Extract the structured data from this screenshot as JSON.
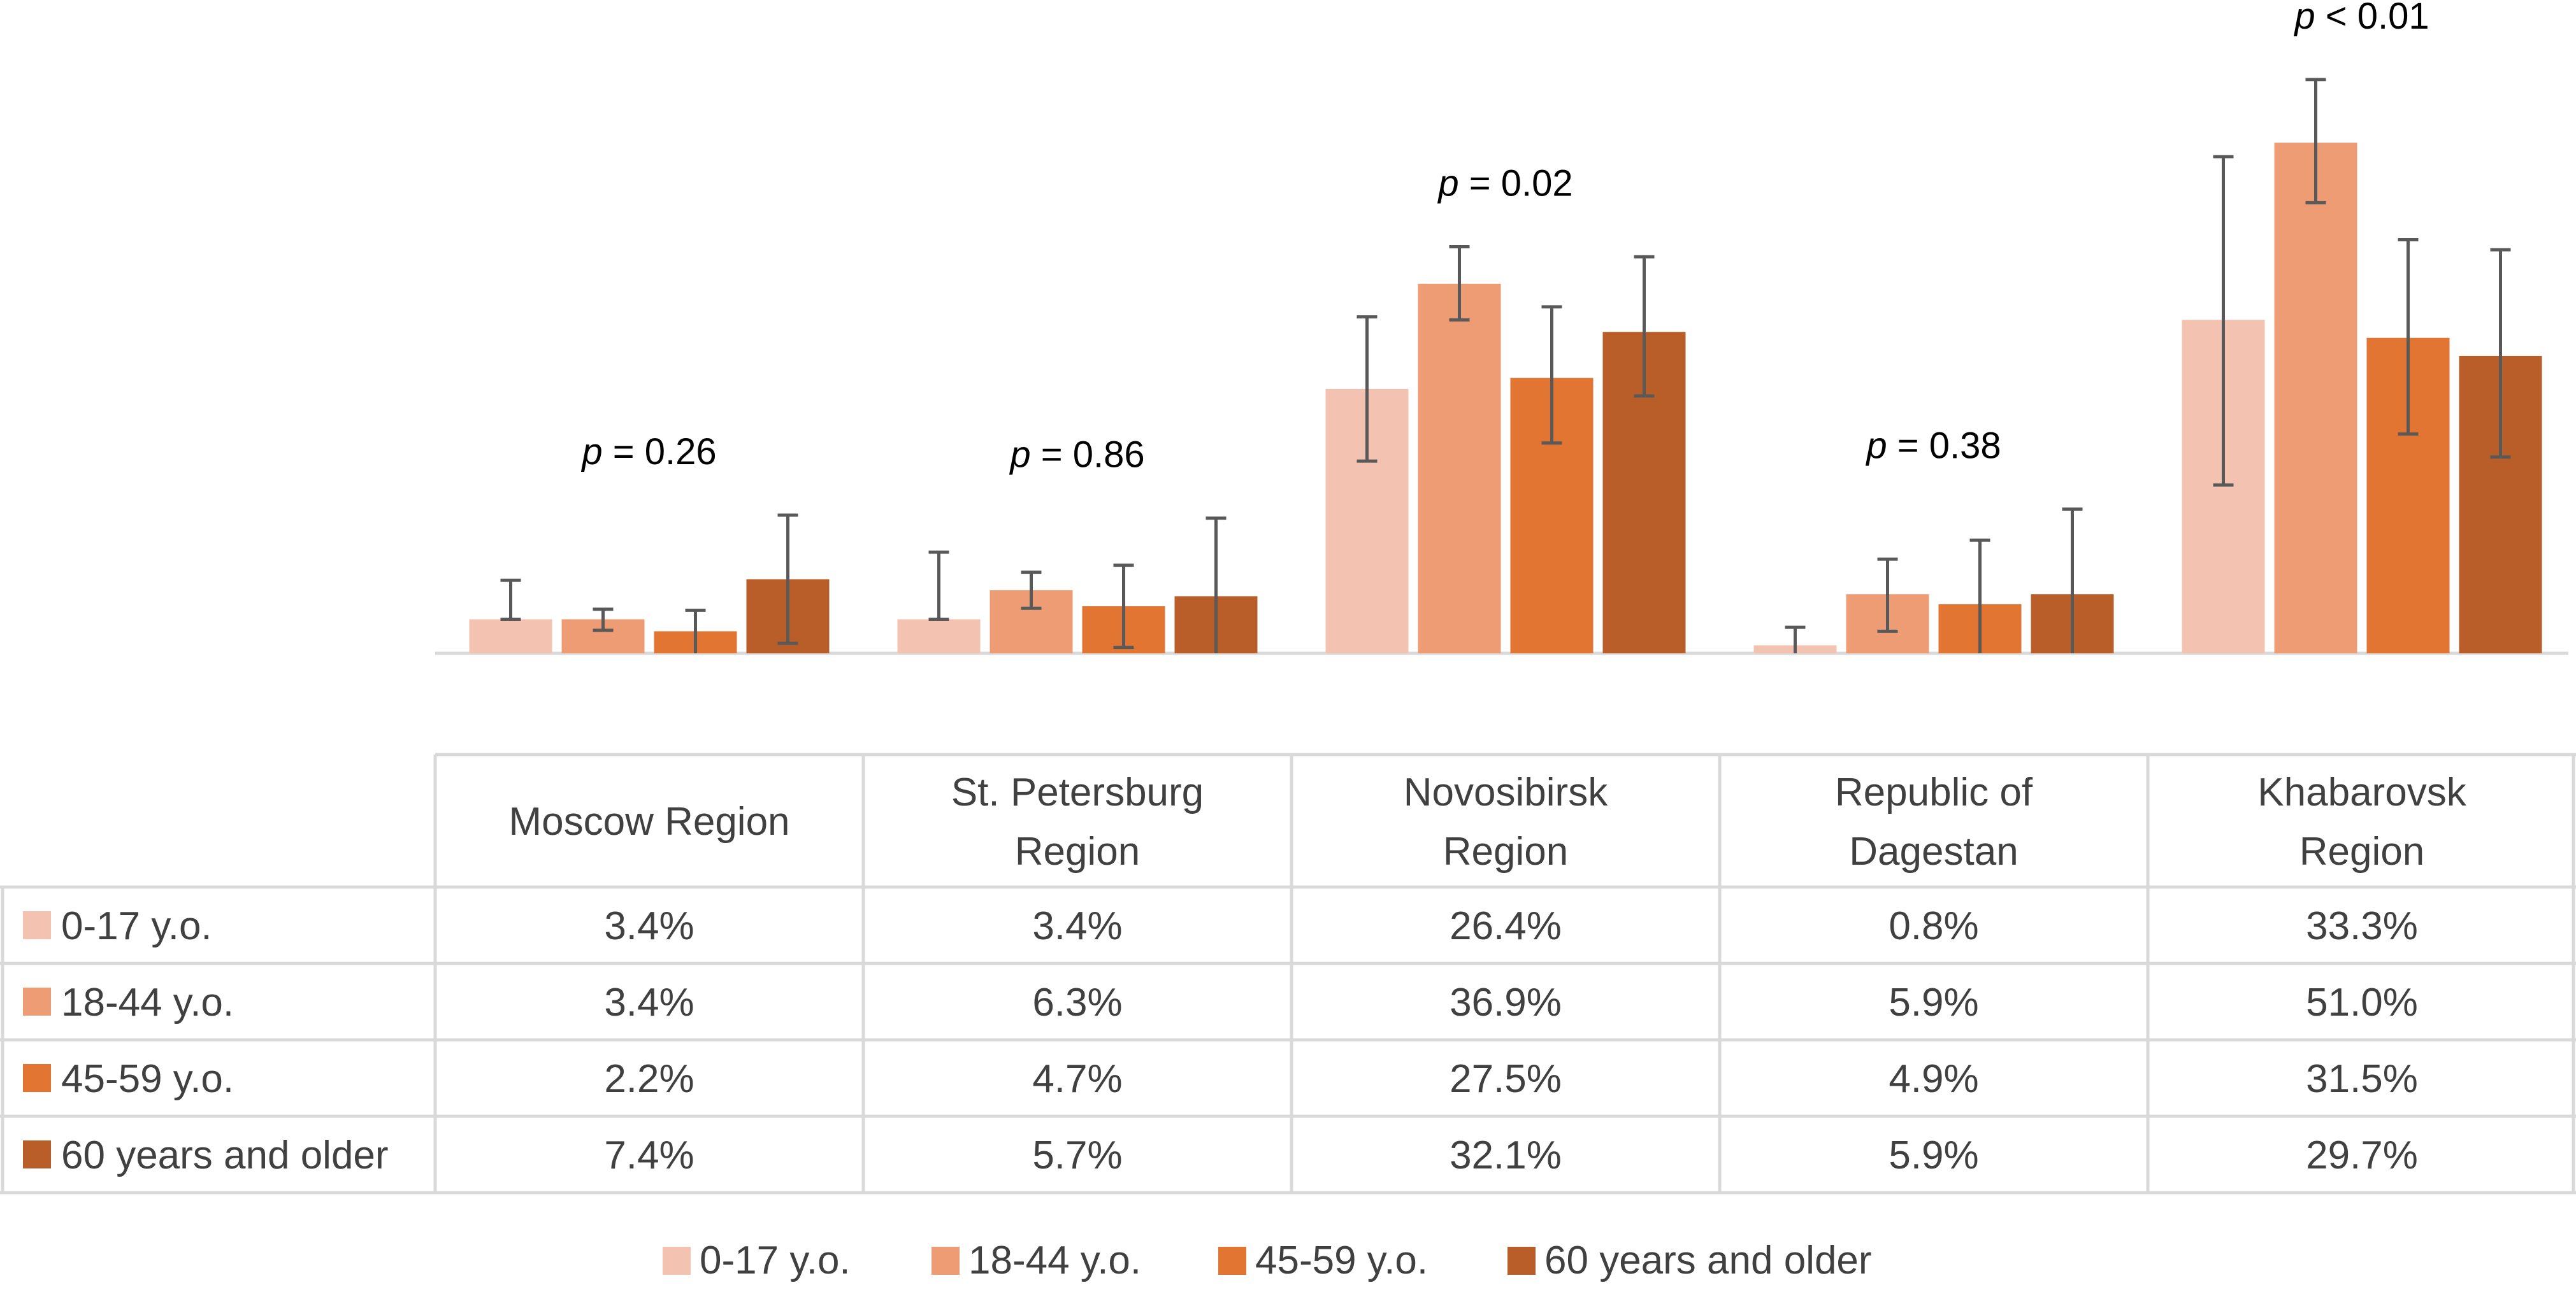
{
  "chart_data": {
    "type": "bar",
    "title": "",
    "xlabel": "",
    "ylabel": "",
    "ylim": [
      0,
      60
    ],
    "grid": false,
    "legend_position": "bottom",
    "categories": [
      "Moscow Region",
      "St. Petersburg Region",
      "Novosibirsk Region",
      "Republic of Dagestan",
      "Khabarovsk Region"
    ],
    "p_values": [
      {
        "prefix": "p",
        "rest": " = 0.26"
      },
      {
        "prefix": "p",
        "rest": " = 0.86"
      },
      {
        "prefix": "p",
        "rest": " = 0.02"
      },
      {
        "prefix": "p",
        "rest": " = 0.38"
      },
      {
        "prefix": "p",
        "rest": " < 0.01"
      }
    ],
    "series": [
      {
        "name": "0-17 y.o.",
        "color": "#F4C2B0",
        "values": [
          3.4,
          3.4,
          26.4,
          0.8,
          33.3
        ],
        "labels": [
          "3.4%",
          "3.4%",
          "26.4%",
          "0.8%",
          "33.3%"
        ],
        "err_low": [
          3.4,
          3.4,
          19.2,
          0.0,
          16.8
        ],
        "err_high": [
          7.3,
          10.1,
          33.6,
          2.6,
          49.6
        ]
      },
      {
        "name": "18-44 y.o.",
        "color": "#EE9C73",
        "values": [
          3.4,
          6.3,
          36.9,
          5.9,
          51.0
        ],
        "labels": [
          "3.4%",
          "6.3%",
          "36.9%",
          "5.9%",
          "51.0%"
        ],
        "err_low": [
          2.3,
          4.5,
          33.3,
          2.2,
          45.0
        ],
        "err_high": [
          4.4,
          8.1,
          40.6,
          9.4,
          57.3
        ]
      },
      {
        "name": "45-59 y.o.",
        "color": "#E27532",
        "values": [
          2.2,
          4.7,
          27.5,
          4.9,
          31.5
        ],
        "labels": [
          "2.2%",
          "4.7%",
          "27.5%",
          "4.9%",
          "31.5%"
        ],
        "err_low": [
          0.0,
          0.6,
          21.0,
          0.0,
          21.9
        ],
        "err_high": [
          4.3,
          8.8,
          34.6,
          11.3,
          41.3
        ]
      },
      {
        "name": "60 years and older",
        "color": "#B95E28",
        "values": [
          7.4,
          5.7,
          32.1,
          5.9,
          29.7
        ],
        "labels": [
          "7.4%",
          "5.7%",
          "32.1%",
          "5.9%",
          "29.7%"
        ],
        "err_low": [
          1.0,
          0.0,
          25.7,
          0.0,
          19.6
        ],
        "err_high": [
          13.8,
          13.5,
          39.6,
          14.4,
          40.3
        ]
      }
    ]
  }
}
